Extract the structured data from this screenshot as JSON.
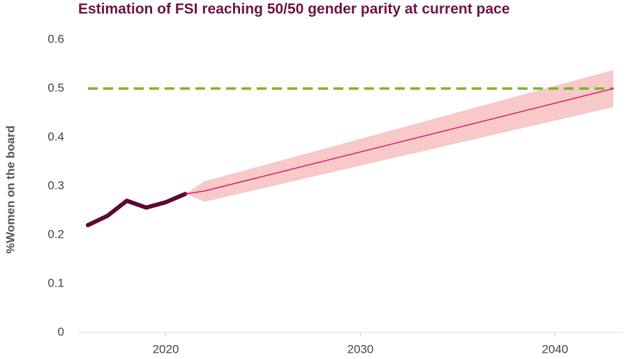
{
  "chart_data": {
    "type": "line",
    "title": "Estimation of FSI reaching 50/50 gender parity at current pace",
    "y_label": "%Women on the board",
    "xlim": [
      2015.5,
      2043.5
    ],
    "xticks": [
      2020,
      2030,
      2040
    ],
    "ylim": [
      0,
      0.6
    ],
    "yticks": [
      0,
      0.1,
      0.2,
      0.3,
      0.4,
      0.5,
      0.6
    ],
    "series": [
      {
        "color": "#5c0a32",
        "x": [
          2016,
          2017,
          2018,
          2019,
          2020,
          2021
        ],
        "values": [
          0.22,
          0.239,
          0.27,
          0.256,
          0.267,
          0.284
        ]
      },
      {
        "color": "#d81b60",
        "band_color": "#f7c9c9",
        "x": [
          2021,
          2022,
          2043
        ],
        "values": [
          0.284,
          0.29,
          0.5
        ],
        "lower": [
          0.284,
          0.268,
          0.462
        ],
        "upper": [
          0.284,
          0.31,
          0.538
        ]
      }
    ],
    "target": {
      "value": 0.5,
      "color": "#7cb32a",
      "x": [
        2016,
        2043
      ]
    }
  }
}
